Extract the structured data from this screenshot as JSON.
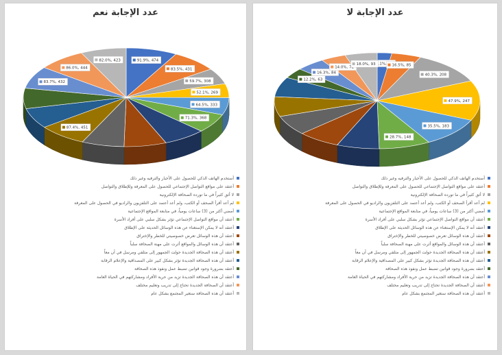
{
  "chart_data": [
    {
      "type": "pie",
      "title": "عدد الإجابة نعم",
      "series": [
        {
          "label": "أستخدم الهاتف الذكي للحصول على الأخبار والترفيه وغير ذلك",
          "value": 474,
          "pct": "91.9%",
          "color": "#4472c4"
        },
        {
          "label": "أعتقد على مواقع التواصل الإجتماعي للحصول على المعرفة وللإطلاق والتواصل",
          "value": 431,
          "pct": "83.5%",
          "color": "#ed7d31"
        },
        {
          "label": "لا أثق كثيراً في ما تورده الصحافة الإلكترونية",
          "value": 308,
          "pct": "59.7%",
          "color": "#a5a5a5"
        },
        {
          "label": "لم أعد أقرأ الصحف أو الكتب، ولم أعد أعتمد على التلفزيون والراديو في الحصول على المعرفة",
          "value": 269,
          "pct": "52.1%",
          "color": "#ffc000"
        },
        {
          "label": "أمضي أكثر من (3) ساعات يومياً، في متابعة المواقع الإجتماعية",
          "value": 333,
          "pct": "64.5%",
          "color": "#5b9bd5"
        },
        {
          "label": "أعتقد أن مواقع التواصل الإجتماعي تؤثر بشكل سلبي على أفراد الأسرة",
          "value": 368,
          "pct": "71.3%",
          "color": "#70ad47"
        },
        {
          "label": "أعتقد أنه لا يمكن الإستغناء عن هذه الوسائل الحديثة على الإطلاق",
          "value": null,
          "pct": "",
          "color": "#264478"
        },
        {
          "label": "أعتقد أن هذه الوسائل تعرض خصوصيتي للخطر والإختراق",
          "value": null,
          "pct": "",
          "color": "#9e480e"
        },
        {
          "label": "أعتقد أن هذه الوسائل والمواقع أثرت على مهنة الصحافة سلباً",
          "value": null,
          "pct": "",
          "color": "#636363"
        },
        {
          "label": "أعتقد أن هذه الصحافة الجديدة حولت الجمهور إلى متلقي ومرسل في آن معاً",
          "value": 451,
          "pct": "87.4%",
          "color": "#997300"
        },
        {
          "label": "أعتقد أن هذه الصحافة الجديدة تؤثر بشكل كبير على المصداقية والإعلام الرقابة",
          "value": null,
          "pct": "",
          "color": "#255e91"
        },
        {
          "label": "أعتقد بضرورة وجود قوانين تضبط عمل ونفوذ هذه الصحافة",
          "value": null,
          "pct": "",
          "color": "#43682b"
        },
        {
          "label": "أعتقد أن هذه الصحافة الجديدة تزيد من حرية الأفراد ومشاركتهم في الحياة العامة",
          "value": 432,
          "pct": "83.7%",
          "color": "#698ed0"
        },
        {
          "label": "أعتقد أن الصحافة الجديدة تحتاج إلى تدريب وتعليم مختلف",
          "value": 444,
          "pct": "86.0%",
          "color": "#f1975a"
        },
        {
          "label": "أعتقد أن هذه الصحافة ستغير المجتمع بشكل عام",
          "value": 423,
          "pct": "82.0%",
          "color": "#b7b7b7"
        }
      ]
    },
    {
      "type": "pie",
      "title": "عدد الإجابة لا",
      "series": [
        {
          "label": "أستخدم الهاتف الذكي للحصول على الأخبار والترفيه وغير ذلك",
          "value": 42,
          "pct": "8.1%",
          "color": "#4472c4"
        },
        {
          "label": "أعتقد على مواقع التواصل الإجتماعي للحصول على المعرفة وللإطلاق والتواصل",
          "value": 85,
          "pct": "16.5%",
          "color": "#ed7d31"
        },
        {
          "label": "لا أثق كثيراً في ما تورده الصحافة الإلكترونية",
          "value": 208,
          "pct": "40.3%",
          "color": "#a5a5a5"
        },
        {
          "label": "لم أعد أقرأ الصحف أو الكتب، ولم أعد أعتمد على التلفزيون والراديو في الحصول على المعرفة",
          "value": 247,
          "pct": "47.9%",
          "color": "#ffc000"
        },
        {
          "label": "أمضي أكثر من (3) ساعات يومياً، في متابعة المواقع الإجتماعية",
          "value": 183,
          "pct": "35.5%",
          "color": "#5b9bd5"
        },
        {
          "label": "أعتقد أن مواقع التواصل الإجتماعي تؤثر بشكل سلبي على أفراد الأسرة",
          "value": 148,
          "pct": "28.7%",
          "color": "#70ad47"
        },
        {
          "label": "أعتقد أنه لا يمكن الإستغناء عن هذه الوسائل الحديثة على الإطلاق",
          "value": null,
          "pct": "",
          "color": "#264478"
        },
        {
          "label": "أعتقد أن هذه الوسائل تعرض خصوصيتي للخطر والإختراق",
          "value": null,
          "pct": "",
          "color": "#9e480e"
        },
        {
          "label": "أعتقد أن هذه الوسائل والمواقع أثرت على مهنة الصحافة سلباً",
          "value": null,
          "pct": "",
          "color": "#636363"
        },
        {
          "label": "أعتقد أن هذه الصحافة الجديدة حولت الجمهور إلى متلقي ومرسل في آن معاً",
          "value": null,
          "pct": "",
          "color": "#997300"
        },
        {
          "label": "أعتقد أن هذه الصحافة الجديدة تؤثر بشكل كبير على المصداقية والإعلام الرقابة",
          "value": null,
          "pct": "",
          "color": "#255e91"
        },
        {
          "label": "أعتقد بضرورة وجود قوانين تضبط عمل ونفوذ هذه الصحافة",
          "value": 63,
          "pct": "12.2%",
          "color": "#43682b"
        },
        {
          "label": "أعتقد أن هذه الصحافة الجديدة تزيد من حرية الأفراد ومشاركتهم في الحياة العامة",
          "value": 84,
          "pct": "16.3%",
          "color": "#698ed0"
        },
        {
          "label": "أعتقد أن الصحافة الجديدة تحتاج إلى تدريب وتعليم مختلف",
          "value": 72,
          "pct": "14.0%",
          "color": "#f1975a"
        },
        {
          "label": "أعتقد أن هذه الصحافة ستغير المجتمع بشكل عام",
          "value": 93,
          "pct": "18.0%",
          "color": "#b7b7b7"
        }
      ]
    }
  ]
}
